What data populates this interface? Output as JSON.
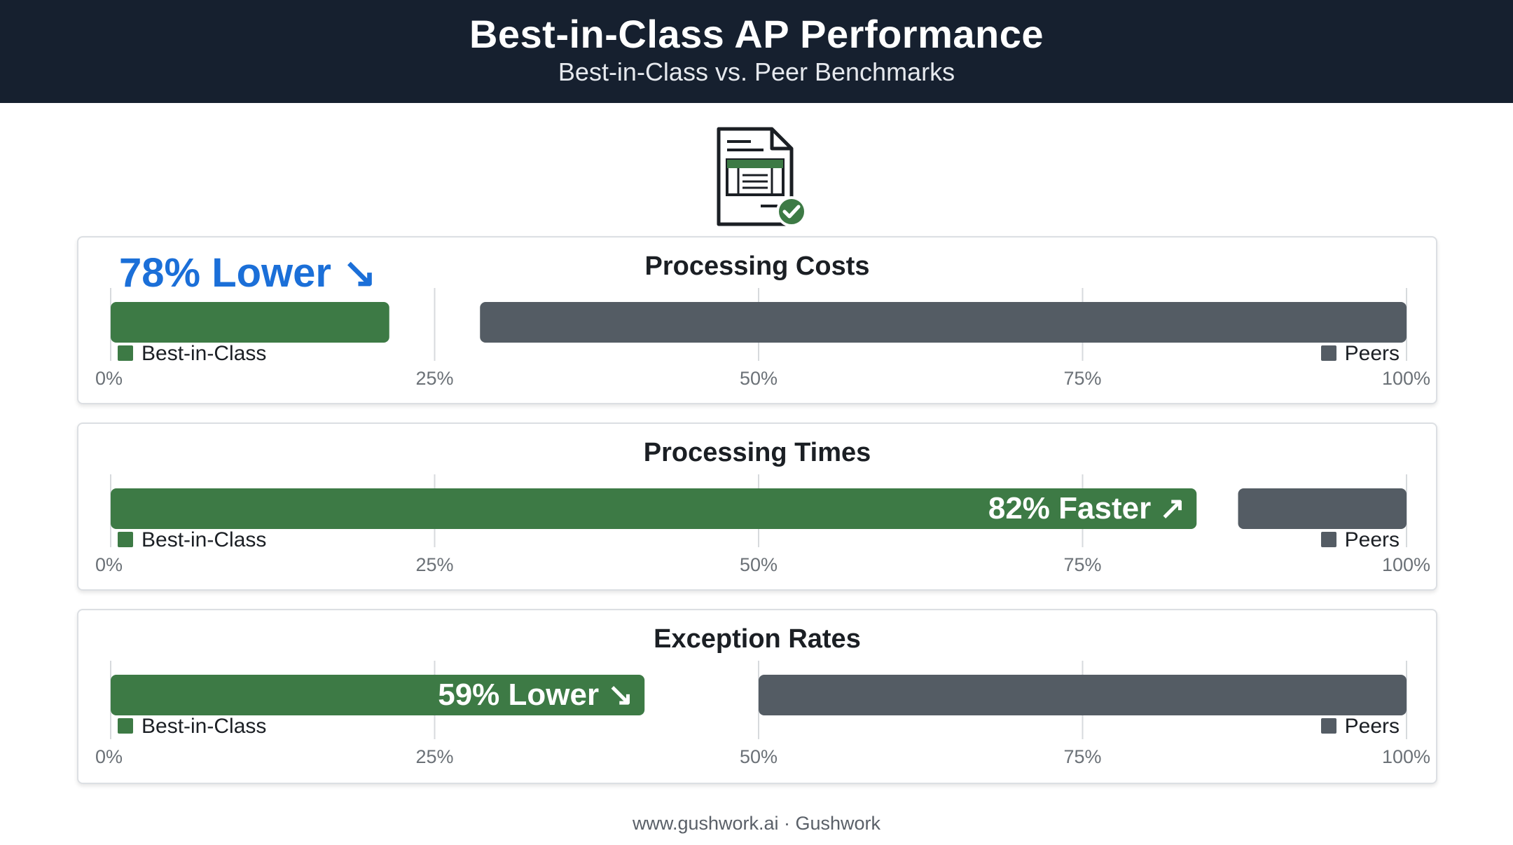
{
  "header": {
    "title": "Best-in-Class AP Performance",
    "subtitle": "Best-in-Class vs. Peer Benchmarks"
  },
  "icons": {
    "document": "document-spreadsheet-check-icon"
  },
  "colors": {
    "header_bg": "#16202f",
    "best_in_class": "#3d7a45",
    "peers": "#545c64",
    "callout_blue": "#1b6fd8",
    "gridline": "#d7dadd",
    "tick_text": "#6b7177"
  },
  "legend": {
    "best": "Best-in-Class",
    "peers": "Peers"
  },
  "chart_data": [
    {
      "type": "bar",
      "title": "Processing Costs",
      "xlim": [
        0,
        100
      ],
      "x_ticks": [
        "0%",
        "25%",
        "50%",
        "75%",
        "100%"
      ],
      "series": [
        {
          "name": "Best-in-Class",
          "range": [
            0,
            21.5
          ]
        },
        {
          "name": "Peers",
          "range": [
            28.5,
            100
          ]
        }
      ],
      "callout": {
        "text": "78% Lower ↘",
        "style": "above-left"
      }
    },
    {
      "type": "bar",
      "title": "Processing Times",
      "xlim": [
        0,
        100
      ],
      "x_ticks": [
        "0%",
        "25%",
        "50%",
        "75%",
        "100%"
      ],
      "series": [
        {
          "name": "Best-in-Class",
          "range": [
            0,
            83.8
          ]
        },
        {
          "name": "Peers",
          "range": [
            87,
            100
          ]
        }
      ],
      "callout": {
        "text": "82% Faster ↗",
        "style": "inside-bar"
      }
    },
    {
      "type": "bar",
      "title": "Exception Rates",
      "xlim": [
        0,
        100
      ],
      "x_ticks": [
        "0%",
        "25%",
        "50%",
        "75%",
        "100%"
      ],
      "series": [
        {
          "name": "Best-in-Class",
          "range": [
            0,
            41.2
          ]
        },
        {
          "name": "Peers",
          "range": [
            50,
            100
          ]
        }
      ],
      "callout": {
        "text": "59% Lower ↘",
        "style": "inside-bar"
      }
    }
  ],
  "footer": {
    "text": "www.gushwork.ai · Gushwork"
  }
}
